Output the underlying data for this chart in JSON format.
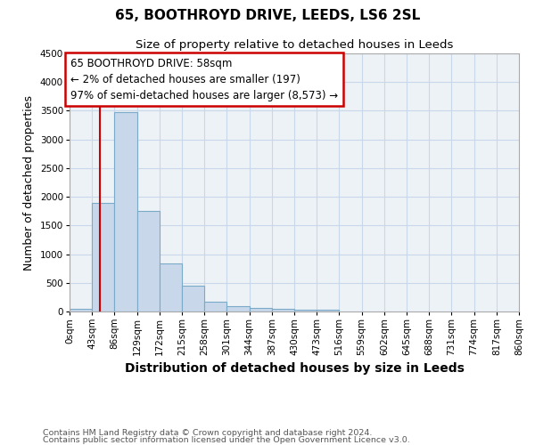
{
  "title": "65, BOOTHROYD DRIVE, LEEDS, LS6 2SL",
  "subtitle": "Size of property relative to detached houses in Leeds",
  "xlabel": "Distribution of detached houses by size in Leeds",
  "ylabel": "Number of detached properties",
  "bin_edges": [
    0,
    43,
    86,
    129,
    172,
    215,
    258,
    301,
    344,
    387,
    430,
    473,
    516,
    559,
    602,
    645,
    688,
    731,
    774,
    817,
    860
  ],
  "bar_heights": [
    50,
    1900,
    3480,
    1760,
    840,
    450,
    165,
    90,
    60,
    45,
    30,
    30,
    0,
    0,
    0,
    0,
    0,
    0,
    0,
    0
  ],
  "bar_color": "#c8d8ea",
  "bar_edge_color": "#7aaac8",
  "property_size": 58,
  "vline_color": "#cc0000",
  "annotation_line1": "65 BOOTHROYD DRIVE: 58sqm",
  "annotation_line2": "← 2% of detached houses are smaller (197)",
  "annotation_line3": "97% of semi-detached houses are larger (8,573) →",
  "annotation_box_color": "#ffffff",
  "annotation_box_edge_color": "#cc0000",
  "ylim": [
    0,
    4500
  ],
  "xlim": [
    0,
    860
  ],
  "yticks": [
    0,
    500,
    1000,
    1500,
    2000,
    2500,
    3000,
    3500,
    4000,
    4500
  ],
  "xtick_labels": [
    "0sqm",
    "43sqm",
    "86sqm",
    "129sqm",
    "172sqm",
    "215sqm",
    "258sqm",
    "301sqm",
    "344sqm",
    "387sqm",
    "430sqm",
    "473sqm",
    "516sqm",
    "559sqm",
    "602sqm",
    "645sqm",
    "688sqm",
    "731sqm",
    "774sqm",
    "817sqm",
    "860sqm"
  ],
  "footer1": "Contains HM Land Registry data © Crown copyright and database right 2024.",
  "footer2": "Contains public sector information licensed under the Open Government Licence v3.0.",
  "title_fontsize": 11,
  "subtitle_fontsize": 9.5,
  "xlabel_fontsize": 10,
  "ylabel_fontsize": 9,
  "tick_fontsize": 7.5,
  "annotation_fontsize": 8.5,
  "footer_fontsize": 6.8,
  "grid_color": "#c8d8e8",
  "bg_color": "#edf2f7"
}
